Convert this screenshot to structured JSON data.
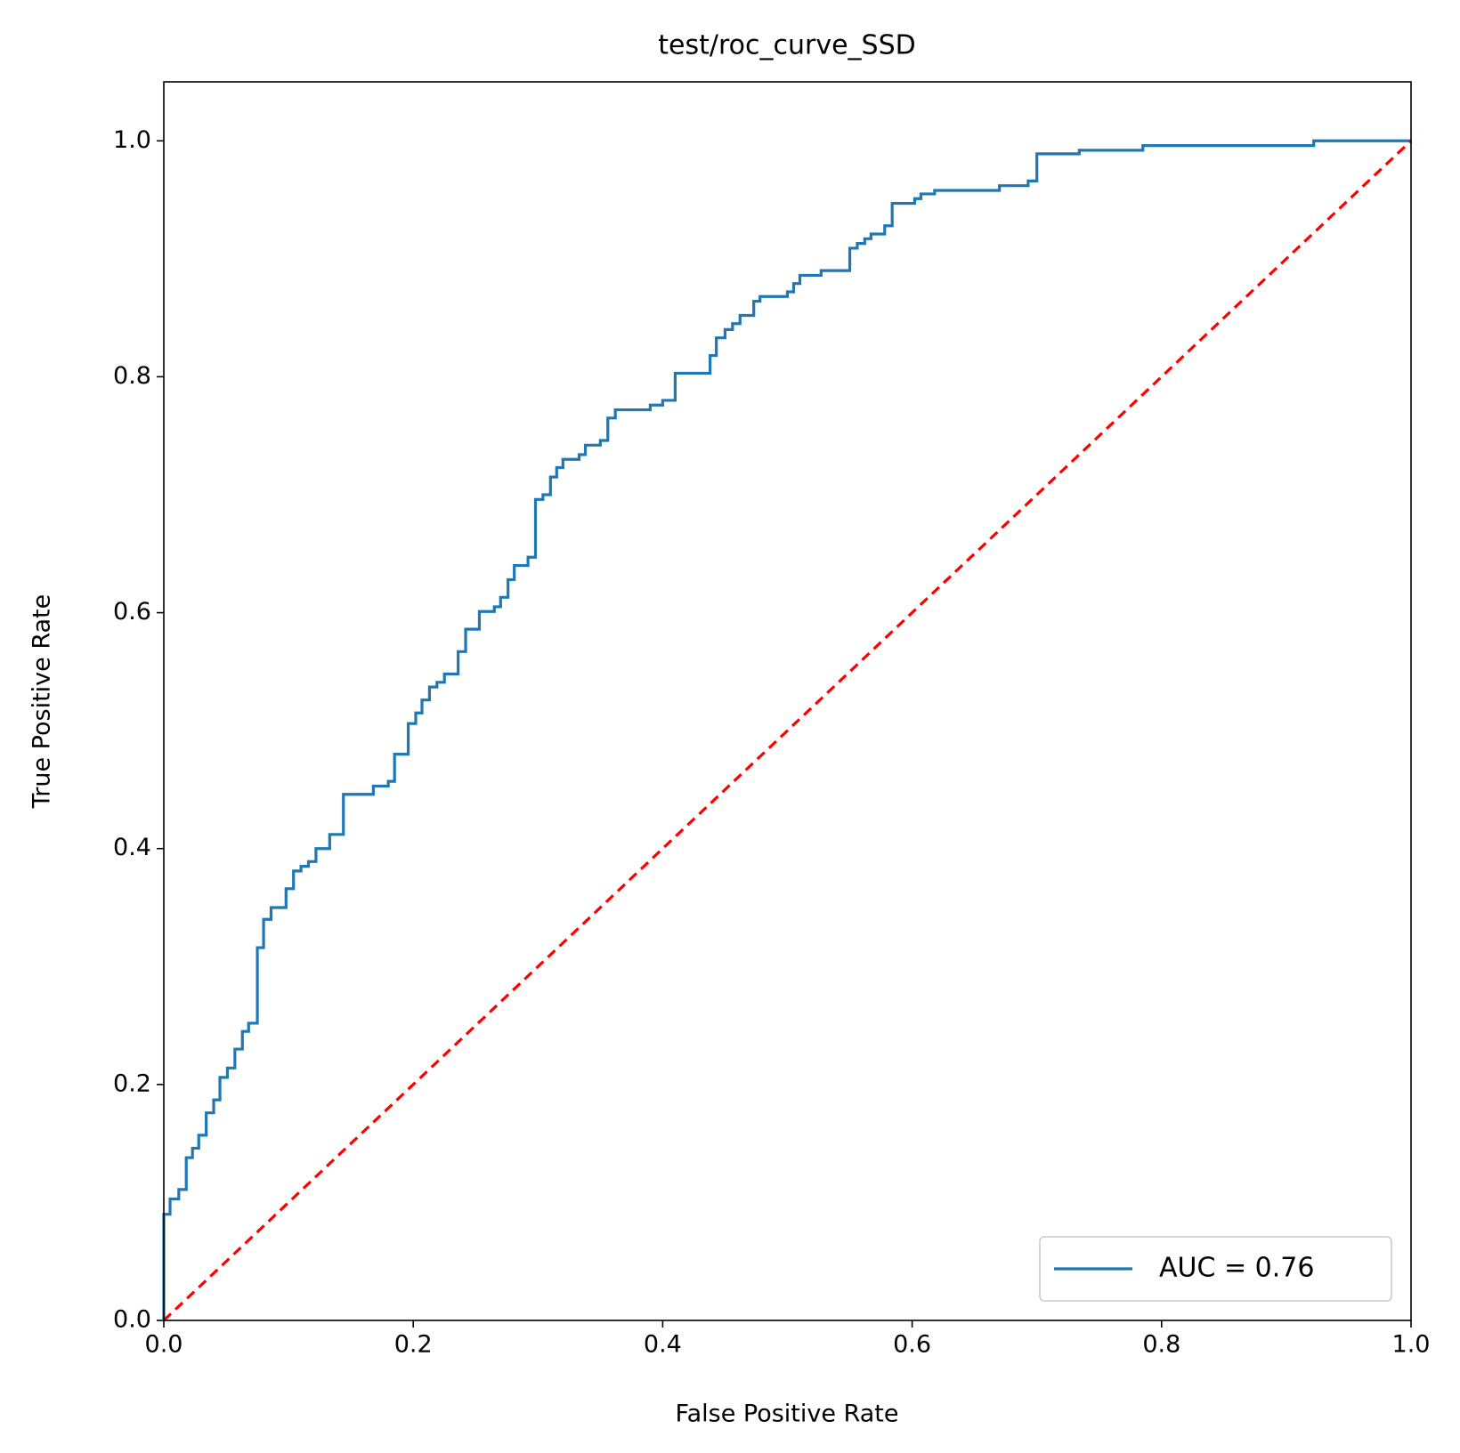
{
  "chart_data": {
    "type": "line",
    "title": "test/roc_curve_SSD",
    "x_label": "False Positive Rate",
    "y_label": "True Positive Rate",
    "xlim": [
      0,
      1
    ],
    "ylim": [
      0,
      1.05
    ],
    "xticks": [
      {
        "value": 0,
        "label": "0.0"
      },
      {
        "value": 0.2,
        "label": "0.2"
      },
      {
        "value": 0.4,
        "label": "0.4"
      },
      {
        "value": 0.6,
        "label": "0.6"
      },
      {
        "value": 0.8,
        "label": "0.8"
      },
      {
        "value": 1,
        "label": "1.0"
      }
    ],
    "yticks": [
      {
        "value": 0,
        "label": "0.0"
      },
      {
        "value": 0.2,
        "label": "0.2"
      },
      {
        "value": 0.4,
        "label": "0.4"
      },
      {
        "value": 0.6,
        "label": "0.6"
      },
      {
        "value": 0.8,
        "label": "0.8"
      },
      {
        "value": 1,
        "label": "1.0"
      }
    ],
    "legend": "lower right",
    "grid": false,
    "series": [
      {
        "name": "AUC = 0.76",
        "color": "#1f77b4",
        "linestyle": "solid",
        "x": [
          0,
          0,
          0.005,
          0.005,
          0.012,
          0.012,
          0.018,
          0.018,
          0.023,
          0.023,
          0.028,
          0.028,
          0.034,
          0.034,
          0.04,
          0.04,
          0.045,
          0.045,
          0.051,
          0.051,
          0.057,
          0.057,
          0.063,
          0.063,
          0.068,
          0.068,
          0.075,
          0.075,
          0.08,
          0.08,
          0.086,
          0.086,
          0.098,
          0.098,
          0.104,
          0.104,
          0.11,
          0.11,
          0.116,
          0.116,
          0.122,
          0.122,
          0.133,
          0.133,
          0.144,
          0.144,
          0.168,
          0.168,
          0.18,
          0.18,
          0.185,
          0.185,
          0.196,
          0.196,
          0.202,
          0.202,
          0.207,
          0.207,
          0.213,
          0.213,
          0.219,
          0.219,
          0.225,
          0.225,
          0.236,
          0.236,
          0.242,
          0.242,
          0.253,
          0.253,
          0.265,
          0.265,
          0.27,
          0.27,
          0.276,
          0.276,
          0.281,
          0.281,
          0.292,
          0.292,
          0.298,
          0.298,
          0.304,
          0.304,
          0.31,
          0.31,
          0.315,
          0.315,
          0.32,
          0.32,
          0.333,
          0.333,
          0.338,
          0.338,
          0.35,
          0.35,
          0.356,
          0.356,
          0.362,
          0.362,
          0.39,
          0.39,
          0.4,
          0.4,
          0.41,
          0.41,
          0.438,
          0.438,
          0.443,
          0.443,
          0.45,
          0.45,
          0.456,
          0.456,
          0.462,
          0.462,
          0.473,
          0.473,
          0.478,
          0.478,
          0.5,
          0.5,
          0.505,
          0.505,
          0.51,
          0.51,
          0.527,
          0.527,
          0.55,
          0.55,
          0.556,
          0.556,
          0.562,
          0.562,
          0.567,
          0.567,
          0.578,
          0.578,
          0.584,
          0.584,
          0.602,
          0.602,
          0.607,
          0.607,
          0.618,
          0.618,
          0.67,
          0.67,
          0.693,
          0.693,
          0.7,
          0.7,
          0.734,
          0.734,
          0.785,
          0.785,
          0.922,
          0.922,
          1.0
        ],
        "values": [
          0,
          0.09,
          0.09,
          0.103,
          0.103,
          0.111,
          0.111,
          0.138,
          0.138,
          0.146,
          0.146,
          0.157,
          0.157,
          0.176,
          0.176,
          0.187,
          0.187,
          0.206,
          0.206,
          0.214,
          0.214,
          0.23,
          0.23,
          0.245,
          0.245,
          0.252,
          0.252,
          0.316,
          0.316,
          0.34,
          0.34,
          0.35,
          0.35,
          0.366,
          0.366,
          0.381,
          0.381,
          0.385,
          0.385,
          0.389,
          0.389,
          0.4,
          0.4,
          0.412,
          0.412,
          0.446,
          0.446,
          0.453,
          0.453,
          0.457,
          0.457,
          0.48,
          0.48,
          0.506,
          0.506,
          0.515,
          0.515,
          0.526,
          0.526,
          0.537,
          0.537,
          0.541,
          0.541,
          0.548,
          0.548,
          0.567,
          0.567,
          0.586,
          0.586,
          0.601,
          0.601,
          0.605,
          0.605,
          0.613,
          0.613,
          0.628,
          0.628,
          0.64,
          0.64,
          0.647,
          0.647,
          0.696,
          0.696,
          0.7,
          0.7,
          0.715,
          0.715,
          0.723,
          0.723,
          0.73,
          0.73,
          0.734,
          0.734,
          0.742,
          0.742,
          0.746,
          0.746,
          0.765,
          0.765,
          0.772,
          0.772,
          0.776,
          0.776,
          0.78,
          0.78,
          0.803,
          0.803,
          0.818,
          0.818,
          0.833,
          0.833,
          0.84,
          0.84,
          0.845,
          0.845,
          0.852,
          0.852,
          0.864,
          0.864,
          0.868,
          0.868,
          0.872,
          0.872,
          0.879,
          0.879,
          0.886,
          0.886,
          0.89,
          0.89,
          0.909,
          0.909,
          0.913,
          0.913,
          0.917,
          0.917,
          0.921,
          0.921,
          0.928,
          0.928,
          0.947,
          0.947,
          0.951,
          0.951,
          0.955,
          0.955,
          0.958,
          0.958,
          0.962,
          0.962,
          0.966,
          0.966,
          0.989,
          0.989,
          0.992,
          0.992,
          0.996,
          0.996,
          1.0,
          1.0
        ]
      },
      {
        "color": "#ff0000",
        "linestyle": "dashed",
        "x": [
          0,
          1
        ],
        "values": [
          0,
          1
        ]
      }
    ]
  }
}
